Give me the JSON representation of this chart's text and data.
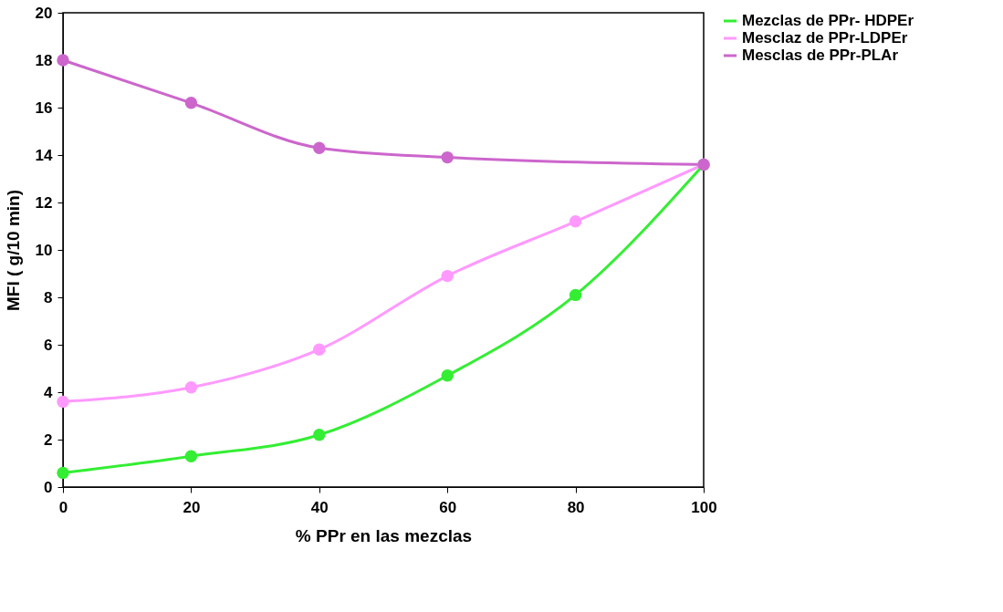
{
  "chart_data": {
    "type": "line",
    "xlabel": "% PPr en las mezclas",
    "ylabel": "MFI ( g/10 min)",
    "x": [
      0,
      20,
      40,
      60,
      80,
      100
    ],
    "series": [
      {
        "name": "Mezclas de PPr- HDPEr",
        "color": "#33ee33",
        "values": [
          0.6,
          1.3,
          2.2,
          4.7,
          8.1,
          13.6
        ]
      },
      {
        "name": "Mesclaz  de PPr-LDPEr",
        "color": "#ff99ff",
        "values": [
          3.6,
          4.2,
          5.8,
          8.9,
          11.2,
          13.6
        ]
      },
      {
        "name": "Mesclas de PPr-PLAr",
        "color": "#cc66cc",
        "x": [
          0,
          20,
          40,
          60,
          100
        ],
        "values": [
          18.0,
          16.2,
          14.3,
          13.9,
          13.6
        ]
      }
    ],
    "xlim": [
      0,
      100
    ],
    "xticks": [
      0,
      20,
      40,
      60,
      80,
      100
    ],
    "ylim": [
      0,
      20
    ],
    "yticks": [
      0,
      2,
      4,
      6,
      8,
      10,
      12,
      14,
      16,
      18,
      20
    ],
    "grid": false,
    "legend": "right",
    "marker": "circle",
    "line_style": "solid"
  }
}
